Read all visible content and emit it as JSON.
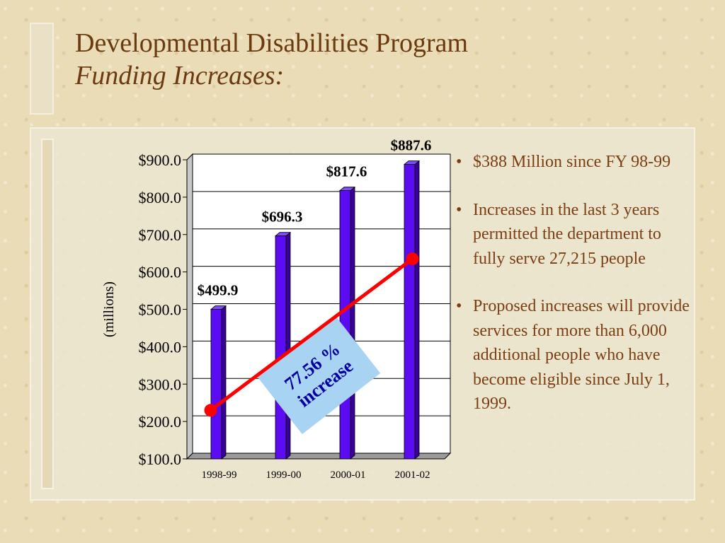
{
  "slide": {
    "title_line1": "Developmental Disabilities Program",
    "title_line2": "Funding Increases:"
  },
  "bullets": [
    "$388 Million since FY 98-99",
    "Increases in the last 3 years permitted the department to fully serve 27,215 people",
    "Proposed increases will provide services for more than 6,000 additional people who have become eligible since July 1, 1999."
  ],
  "chart_data": {
    "type": "bar",
    "categories": [
      "1998-99",
      "1999-00",
      "2000-01",
      "2001-02"
    ],
    "values": [
      499.9,
      696.3,
      817.6,
      887.6
    ],
    "data_labels": [
      "$499.9",
      "$696.3",
      "$817.6",
      "$887.6"
    ],
    "ylabel": "(millions)",
    "ylim": [
      100,
      900
    ],
    "yticks": [
      100,
      200,
      300,
      400,
      500,
      600,
      700,
      800,
      900
    ],
    "ytick_labels": [
      "$100.0",
      "$200.0",
      "$300.0",
      "$400.0",
      "$500.0",
      "$600.0",
      "$700.0",
      "$800.0",
      "$900.0"
    ],
    "grid": true,
    "trend_line": {
      "from_category": "1998-99",
      "to_category": "2001-02",
      "from_value": 230,
      "to_value": 635
    },
    "annotation": {
      "text_line1": "77.56 %",
      "text_line2": "increase"
    },
    "colors": {
      "bar": "#5b0cf0",
      "bar_side": "#3a0099",
      "trend": "#ff0000",
      "annotation_bg": "#a9d3f2"
    }
  }
}
